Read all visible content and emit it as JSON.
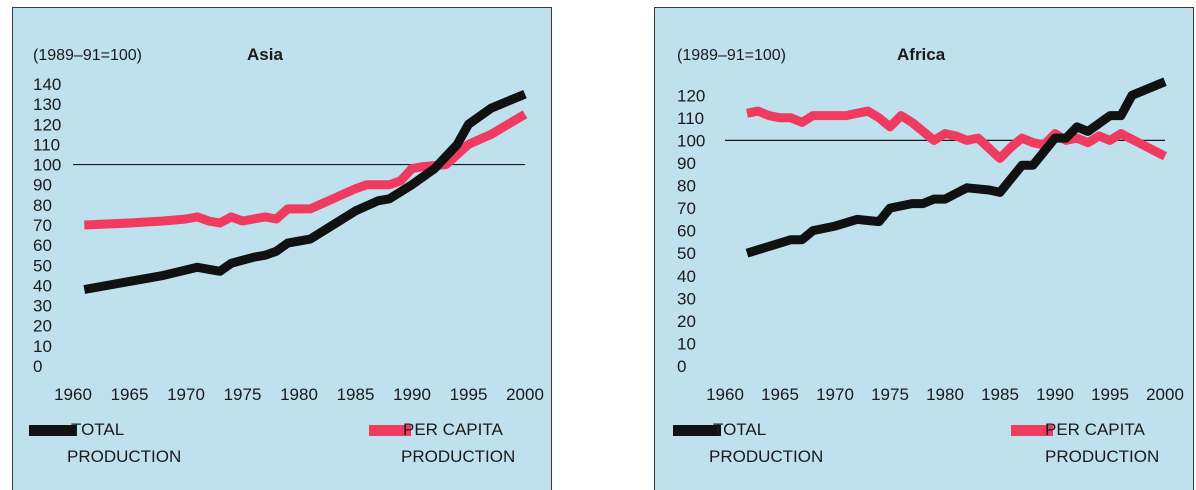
{
  "chart_data": [
    {
      "type": "line",
      "title": "Asia",
      "index_note": "(1989–91=100)",
      "xlabel": "",
      "ylabel": "",
      "xlim": [
        1960,
        2000
      ],
      "ylim": [
        0,
        140
      ],
      "x_ticks": [
        "1960",
        "1965",
        "1970",
        "1975",
        "1980",
        "1985",
        "1990",
        "1995",
        "2000"
      ],
      "y_ticks": [
        "0",
        "10",
        "20",
        "30",
        "40",
        "50",
        "60",
        "70",
        "80",
        "90",
        "100",
        "110",
        "120",
        "130",
        "140"
      ],
      "reference_line": 100,
      "colors": {
        "background": "#bfe1ee",
        "total": "#111111",
        "per_capita": "#ee3b5f"
      },
      "legend": {
        "total": [
          "TOTAL",
          "PRODUCTION"
        ],
        "per_capita": [
          "PER CAPITA",
          "PRODUCTION"
        ]
      },
      "series": [
        {
          "name": "TOTAL PRODUCTION",
          "key": "total",
          "x": [
            1961,
            1965,
            1968,
            1971,
            1972,
            1973,
            1974,
            1976,
            1977,
            1978,
            1979,
            1981,
            1983,
            1985,
            1987,
            1988,
            1990,
            1992,
            1994,
            1995,
            1997,
            2000
          ],
          "y": [
            38,
            42,
            45,
            49,
            48,
            47,
            51,
            54,
            55,
            57,
            61,
            63,
            70,
            77,
            82,
            83,
            90,
            98,
            110,
            120,
            128,
            135
          ]
        },
        {
          "name": "PER CAPITA PRODUCTION",
          "key": "per_capita",
          "x": [
            1961,
            1965,
            1968,
            1970,
            1971,
            1972,
            1973,
            1974,
            1975,
            1976,
            1977,
            1978,
            1979,
            1981,
            1983,
            1985,
            1986,
            1988,
            1989,
            1990,
            1991,
            1993,
            1995,
            1997,
            2000
          ],
          "y": [
            70,
            71,
            72,
            73,
            74,
            72,
            71,
            74,
            72,
            73,
            74,
            73,
            78,
            78,
            83,
            88,
            90,
            90,
            92,
            98,
            99,
            100,
            110,
            115,
            125
          ]
        }
      ]
    },
    {
      "type": "line",
      "title": "Africa",
      "index_note": "(1989–91=100)",
      "xlabel": "",
      "ylabel": "",
      "xlim": [
        1960,
        2000
      ],
      "ylim": [
        0,
        125
      ],
      "x_ticks": [
        "1960",
        "1965",
        "1970",
        "1975",
        "1980",
        "1985",
        "1990",
        "1995",
        "2000"
      ],
      "y_ticks": [
        "0",
        "10",
        "20",
        "30",
        "40",
        "50",
        "60",
        "70",
        "80",
        "90",
        "100",
        "110",
        "120"
      ],
      "reference_line": 100,
      "colors": {
        "background": "#bfe1ee",
        "total": "#111111",
        "per_capita": "#ee3b5f"
      },
      "legend": {
        "total": [
          "TOTAL",
          "PRODUCTION"
        ],
        "per_capita": [
          "PER CAPITA",
          "PRODUCTION"
        ]
      },
      "series": [
        {
          "name": "TOTAL PRODUCTION",
          "key": "total",
          "x": [
            1962,
            1964,
            1966,
            1967,
            1968,
            1970,
            1972,
            1974,
            1975,
            1977,
            1978,
            1979,
            1980,
            1982,
            1984,
            1985,
            1987,
            1988,
            1989,
            1990,
            1991,
            1992,
            1993,
            1995,
            1996,
            1997,
            2000
          ],
          "y": [
            50,
            53,
            56,
            56,
            60,
            62,
            65,
            64,
            70,
            72,
            72,
            74,
            74,
            79,
            78,
            77,
            89,
            89,
            95,
            101,
            101,
            106,
            104,
            111,
            111,
            120,
            126
          ]
        },
        {
          "name": "PER CAPITA PRODUCTION",
          "key": "per_capita",
          "x": [
            1962,
            1963,
            1964,
            1965,
            1966,
            1967,
            1968,
            1970,
            1971,
            1972,
            1973,
            1974,
            1975,
            1976,
            1977,
            1978,
            1979,
            1980,
            1981,
            1982,
            1983,
            1985,
            1986,
            1987,
            1988,
            1989,
            1990,
            1991,
            1992,
            1993,
            1994,
            1995,
            1996,
            2000
          ],
          "y": [
            112,
            113,
            111,
            110,
            110,
            108,
            111,
            111,
            111,
            112,
            113,
            110,
            106,
            111,
            108,
            104,
            100,
            103,
            102,
            100,
            101,
            92,
            97,
            101,
            99,
            98,
            103,
            100,
            101,
            99,
            102,
            100,
            103,
            93
          ]
        }
      ]
    }
  ]
}
